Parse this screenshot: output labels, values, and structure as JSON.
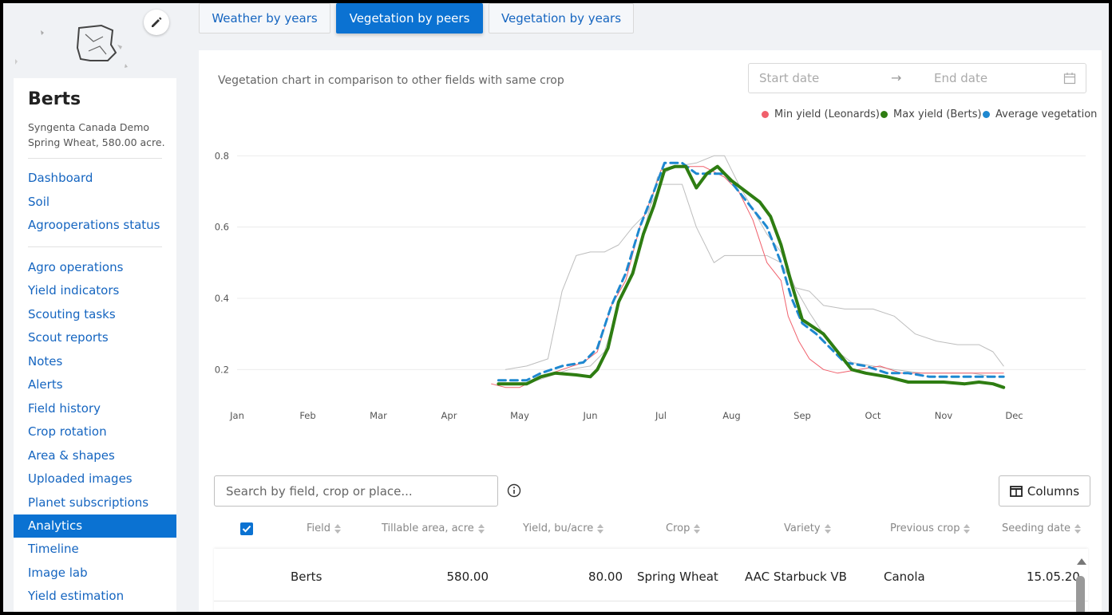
{
  "sidebar": {
    "field_name": "Berts",
    "company": "Syngenta Canada Demo",
    "crop_info": "Spring Wheat, 580.00 acre.",
    "group1": [
      "Dashboard",
      "Soil",
      "Agrooperations status"
    ],
    "group2": [
      "Agro operations",
      "Yield indicators",
      "Scouting tasks",
      "Scout reports",
      "Notes",
      "Alerts",
      "Field history",
      "Crop rotation",
      "Area & shapes",
      "Uploaded images",
      "Planet subscriptions",
      "Analytics",
      "Timeline",
      "Image lab",
      "Yield estimation"
    ],
    "active_item": "Analytics"
  },
  "tabs": [
    "Weather by years",
    "Vegetation by peers",
    "Vegetation by years"
  ],
  "active_tab": "Vegetation by peers",
  "chart_section": {
    "description": "Vegetation chart in comparison to other fields with same crop",
    "start_placeholder": "Start date",
    "end_placeholder": "End date",
    "legend": [
      {
        "label": "Min yield (Leonards)",
        "color": "#f0606c"
      },
      {
        "label": "Max yield (Berts)",
        "color": "#2e7d12"
      },
      {
        "label": "Average vegetation",
        "color": "#1e88d0"
      }
    ]
  },
  "chart_data": {
    "type": "line",
    "xlabel": "",
    "ylabel": "",
    "x_ticks": [
      "Jan",
      "Feb",
      "Mar",
      "Apr",
      "May",
      "Jun",
      "Jul",
      "Aug",
      "Sep",
      "Oct",
      "Nov",
      "Dec"
    ],
    "y_ticks": [
      "0.2",
      "0.4",
      "0.6",
      "0.8"
    ],
    "ylim": [
      0.1,
      0.85
    ],
    "x_unit": "month (1 = Jan 1)",
    "series": [
      {
        "name": "Min yield (Leonards)",
        "color": "#f0606c",
        "width": 1,
        "points": [
          [
            4.6,
            0.16
          ],
          [
            4.8,
            0.15
          ],
          [
            5.0,
            0.15
          ],
          [
            5.3,
            0.18
          ],
          [
            5.6,
            0.2
          ],
          [
            5.9,
            0.22
          ],
          [
            6.1,
            0.25
          ],
          [
            6.3,
            0.38
          ],
          [
            6.5,
            0.45
          ],
          [
            6.7,
            0.6
          ],
          [
            6.9,
            0.7
          ],
          [
            7.0,
            0.76
          ],
          [
            7.3,
            0.77
          ],
          [
            7.6,
            0.77
          ],
          [
            7.9,
            0.74
          ],
          [
            8.1,
            0.7
          ],
          [
            8.3,
            0.62
          ],
          [
            8.5,
            0.5
          ],
          [
            8.7,
            0.45
          ],
          [
            8.8,
            0.35
          ],
          [
            8.95,
            0.28
          ],
          [
            9.1,
            0.23
          ],
          [
            9.3,
            0.2
          ],
          [
            9.5,
            0.19
          ],
          [
            9.8,
            0.2
          ],
          [
            10.1,
            0.21
          ],
          [
            10.4,
            0.19
          ],
          [
            10.7,
            0.19
          ],
          [
            11.0,
            0.19
          ],
          [
            11.3,
            0.19
          ],
          [
            11.6,
            0.19
          ],
          [
            11.85,
            0.19
          ]
        ]
      },
      {
        "name": "Max yield (Berts)",
        "color": "#2e7d12",
        "width": 4,
        "points": [
          [
            4.7,
            0.16
          ],
          [
            4.9,
            0.16
          ],
          [
            5.1,
            0.16
          ],
          [
            5.3,
            0.18
          ],
          [
            5.5,
            0.19
          ],
          [
            5.8,
            0.185
          ],
          [
            6.0,
            0.18
          ],
          [
            6.1,
            0.2
          ],
          [
            6.25,
            0.26
          ],
          [
            6.4,
            0.39
          ],
          [
            6.6,
            0.47
          ],
          [
            6.75,
            0.58
          ],
          [
            6.9,
            0.66
          ],
          [
            7.05,
            0.76
          ],
          [
            7.2,
            0.77
          ],
          [
            7.35,
            0.77
          ],
          [
            7.5,
            0.71
          ],
          [
            7.65,
            0.75
          ],
          [
            7.8,
            0.77
          ],
          [
            7.9,
            0.75
          ],
          [
            8.0,
            0.73
          ],
          [
            8.2,
            0.7
          ],
          [
            8.4,
            0.67
          ],
          [
            8.55,
            0.63
          ],
          [
            8.7,
            0.55
          ],
          [
            8.85,
            0.44
          ],
          [
            9.0,
            0.34
          ],
          [
            9.15,
            0.32
          ],
          [
            9.3,
            0.3
          ],
          [
            9.5,
            0.25
          ],
          [
            9.7,
            0.2
          ],
          [
            9.9,
            0.19
          ],
          [
            10.2,
            0.18
          ],
          [
            10.5,
            0.165
          ],
          [
            10.8,
            0.165
          ],
          [
            11.0,
            0.165
          ],
          [
            11.3,
            0.16
          ],
          [
            11.5,
            0.165
          ],
          [
            11.7,
            0.16
          ],
          [
            11.85,
            0.15
          ]
        ]
      },
      {
        "name": "Average vegetation",
        "color": "#1e88d0",
        "width": 3,
        "dashed": true,
        "points": [
          [
            4.7,
            0.17
          ],
          [
            4.9,
            0.17
          ],
          [
            5.1,
            0.17
          ],
          [
            5.3,
            0.19
          ],
          [
            5.6,
            0.21
          ],
          [
            5.9,
            0.22
          ],
          [
            6.1,
            0.26
          ],
          [
            6.3,
            0.38
          ],
          [
            6.5,
            0.47
          ],
          [
            6.7,
            0.6
          ],
          [
            6.9,
            0.7
          ],
          [
            7.05,
            0.78
          ],
          [
            7.3,
            0.78
          ],
          [
            7.5,
            0.75
          ],
          [
            7.7,
            0.75
          ],
          [
            7.9,
            0.75
          ],
          [
            8.1,
            0.7
          ],
          [
            8.3,
            0.65
          ],
          [
            8.5,
            0.6
          ],
          [
            8.7,
            0.5
          ],
          [
            8.85,
            0.4
          ],
          [
            9.0,
            0.33
          ],
          [
            9.2,
            0.3
          ],
          [
            9.4,
            0.26
          ],
          [
            9.6,
            0.22
          ],
          [
            9.9,
            0.21
          ],
          [
            10.2,
            0.19
          ],
          [
            10.5,
            0.19
          ],
          [
            10.8,
            0.18
          ],
          [
            11.1,
            0.18
          ],
          [
            11.4,
            0.18
          ],
          [
            11.7,
            0.18
          ],
          [
            11.85,
            0.18
          ]
        ]
      },
      {
        "name": "",
        "color": "#bdbdbd",
        "width": 1,
        "points": [
          [
            4.8,
            0.2
          ],
          [
            5.1,
            0.21
          ],
          [
            5.4,
            0.23
          ],
          [
            5.6,
            0.42
          ],
          [
            5.8,
            0.52
          ],
          [
            6.0,
            0.53
          ],
          [
            6.2,
            0.53
          ],
          [
            6.4,
            0.55
          ],
          [
            6.6,
            0.6
          ],
          [
            6.8,
            0.64
          ],
          [
            7.0,
            0.72
          ],
          [
            7.3,
            0.72
          ],
          [
            7.5,
            0.6
          ],
          [
            7.75,
            0.5
          ],
          [
            7.9,
            0.52
          ],
          [
            8.2,
            0.52
          ],
          [
            8.5,
            0.52
          ],
          [
            8.7,
            0.5
          ],
          [
            8.9,
            0.43
          ],
          [
            9.1,
            0.42
          ],
          [
            9.3,
            0.38
          ],
          [
            9.6,
            0.37
          ],
          [
            10.0,
            0.37
          ],
          [
            10.3,
            0.35
          ],
          [
            10.6,
            0.3
          ],
          [
            10.9,
            0.28
          ],
          [
            11.2,
            0.27
          ],
          [
            11.5,
            0.27
          ],
          [
            11.7,
            0.25
          ],
          [
            11.85,
            0.21
          ]
        ]
      },
      {
        "name": "",
        "color": "#bdbdbd",
        "width": 1,
        "points": [
          [
            4.8,
            0.16
          ],
          [
            5.1,
            0.16
          ],
          [
            5.4,
            0.18
          ],
          [
            5.7,
            0.2
          ],
          [
            6.0,
            0.21
          ],
          [
            6.2,
            0.25
          ],
          [
            6.4,
            0.38
          ],
          [
            6.6,
            0.48
          ],
          [
            6.8,
            0.62
          ],
          [
            6.95,
            0.74
          ],
          [
            7.2,
            0.77
          ],
          [
            7.5,
            0.78
          ],
          [
            7.75,
            0.8
          ],
          [
            7.9,
            0.8
          ],
          [
            8.1,
            0.72
          ],
          [
            8.3,
            0.65
          ],
          [
            8.5,
            0.58
          ],
          [
            8.7,
            0.53
          ],
          [
            8.9,
            0.43
          ],
          [
            9.1,
            0.36
          ],
          [
            9.3,
            0.3
          ],
          [
            9.5,
            0.25
          ],
          [
            9.7,
            0.22
          ],
          [
            10.0,
            0.21
          ],
          [
            10.3,
            0.2
          ],
          [
            10.7,
            0.19
          ],
          [
            11.0,
            0.19
          ],
          [
            11.4,
            0.19
          ],
          [
            11.7,
            0.18
          ]
        ]
      }
    ]
  },
  "table": {
    "search_placeholder": "Search by field, crop or place...",
    "columns_label": "Columns",
    "headers": [
      "Field",
      "Tillable area, acre",
      "Yield, bu/acre",
      "Crop",
      "Variety",
      "Previous crop",
      "Seeding date"
    ],
    "rows": [
      [
        "Berts",
        "580.00",
        "80.00",
        "Spring Wheat",
        "AAC Starbuck VB",
        "Canola",
        "15.05.20"
      ]
    ]
  }
}
